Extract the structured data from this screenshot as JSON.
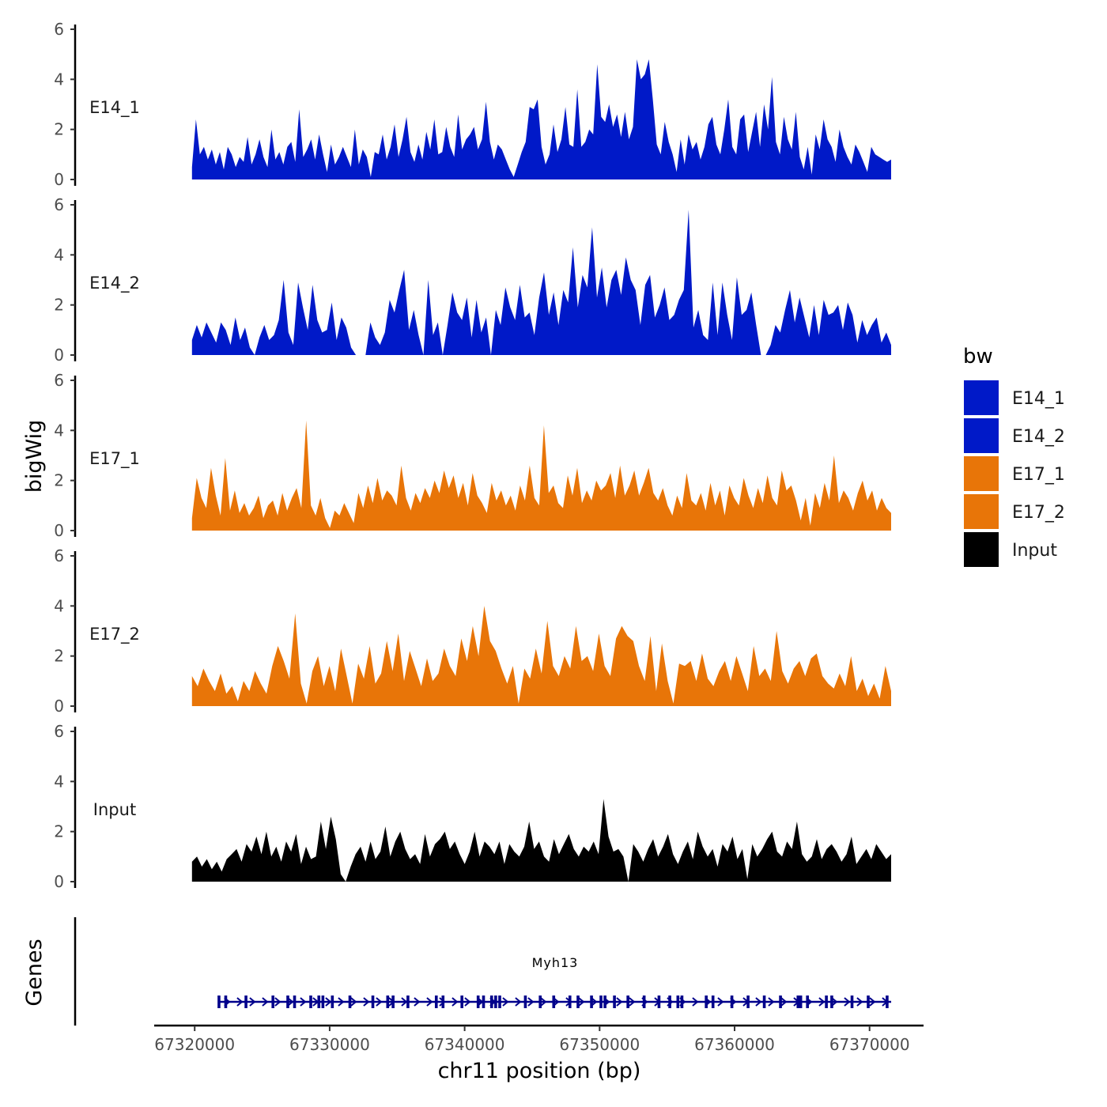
{
  "chart_data": {
    "type": "area",
    "region": "chr11",
    "xlabel": "chr11 position (bp)",
    "ylabel": "bigWig",
    "genes_label": "Genes",
    "xlim": [
      67317000,
      67374000
    ],
    "x_ticks": [
      67320000,
      67330000,
      67340000,
      67350000,
      67360000,
      67370000
    ],
    "x_tick_labels": [
      "67320000",
      "67330000",
      "67340000",
      "67350000",
      "67360000",
      "67370000"
    ],
    "ylim": [
      0,
      6
    ],
    "y_ticks": [
      0,
      2,
      4,
      6
    ],
    "y_tick_labels": [
      "0",
      "2",
      "4",
      "6"
    ],
    "data_range": [
      67319800,
      67371600
    ],
    "legend": {
      "title": "bw",
      "entries": [
        {
          "label": "E14_1",
          "color": "#0019C8"
        },
        {
          "label": "E14_2",
          "color": "#0019C8"
        },
        {
          "label": "E17_1",
          "color": "#E87508"
        },
        {
          "label": "E17_2",
          "color": "#E87508"
        },
        {
          "label": "Input",
          "color": "#000000"
        }
      ]
    },
    "series": [
      {
        "name": "E14_1",
        "color": "#0019C8",
        "values": [
          0.5,
          2.4,
          1.0,
          1.3,
          0.8,
          1.2,
          0.6,
          1.1,
          0.4,
          1.3,
          1.0,
          0.5,
          0.9,
          0.7,
          1.7,
          0.6,
          1.0,
          1.6,
          0.9,
          0.5,
          2.0,
          0.8,
          1.1,
          0.6,
          1.3,
          1.5,
          0.7,
          2.8,
          0.9,
          1.2,
          1.6,
          0.8,
          1.8,
          1.0,
          0.3,
          1.4,
          0.6,
          0.9,
          1.3,
          0.9,
          0.5,
          2.0,
          0.6,
          1.2,
          0.9,
          0.1,
          1.1,
          1.0,
          1.8,
          0.8,
          1.3,
          2.2,
          0.9,
          1.6,
          2.5,
          1.1,
          0.7,
          1.4,
          0.8,
          1.9,
          1.2,
          2.4,
          1.0,
          1.1,
          2.1,
          1.3,
          0.9,
          2.6,
          1.2,
          1.6,
          1.8,
          2.1,
          1.2,
          1.6,
          3.1,
          1.5,
          0.8,
          1.4,
          1.2,
          0.8,
          0.4,
          0.1,
          0.6,
          1.1,
          1.5,
          2.9,
          2.8,
          3.2,
          1.3,
          0.6,
          1.0,
          2.2,
          1.1,
          1.6,
          2.9,
          1.4,
          1.3,
          3.6,
          1.3,
          1.5,
          2.0,
          1.8,
          4.6,
          2.5,
          2.3,
          3.0,
          2.1,
          2.6,
          1.7,
          2.7,
          1.6,
          2.1,
          4.8,
          4.0,
          4.2,
          4.8,
          3.2,
          1.4,
          1.0,
          2.3,
          1.5,
          1.0,
          0.3,
          1.6,
          0.6,
          1.8,
          1.2,
          1.5,
          0.8,
          1.3,
          2.2,
          2.5,
          1.4,
          1.0,
          2.0,
          3.2,
          1.3,
          1.0,
          2.4,
          2.6,
          1.1,
          1.9,
          2.7,
          1.3,
          3.0,
          2.0,
          4.1,
          1.5,
          1.0,
          2.5,
          1.6,
          1.2,
          2.7,
          0.9,
          0.4,
          1.3,
          0.2,
          1.8,
          1.2,
          2.4,
          1.6,
          1.3,
          0.7,
          2.0,
          1.3,
          0.9,
          0.6,
          1.4,
          1.1,
          0.7,
          0.3,
          1.3,
          1.0,
          0.9,
          0.8,
          0.7,
          0.8
        ]
      },
      {
        "name": "E14_2",
        "color": "#0019C8",
        "values": [
          0.6,
          1.2,
          0.7,
          1.3,
          0.9,
          0.5,
          1.3,
          1.0,
          0.4,
          1.5,
          0.6,
          1.1,
          0.3,
          0.0,
          0.7,
          1.2,
          0.6,
          0.8,
          1.4,
          3.0,
          0.9,
          0.4,
          2.9,
          1.9,
          1.0,
          2.8,
          1.4,
          0.9,
          1.0,
          2.1,
          0.6,
          1.5,
          1.1,
          0.3,
          0.0,
          0.0,
          0.0,
          1.3,
          0.7,
          0.4,
          0.9,
          2.2,
          1.7,
          2.6,
          3.4,
          1.0,
          1.8,
          0.8,
          0.0,
          3.0,
          0.8,
          1.3,
          0.0,
          1.2,
          2.5,
          1.7,
          1.4,
          2.3,
          0.7,
          2.2,
          0.9,
          1.5,
          0.0,
          1.8,
          1.2,
          2.7,
          1.9,
          1.4,
          2.8,
          1.5,
          1.7,
          0.8,
          2.3,
          3.3,
          1.6,
          2.5,
          1.2,
          2.6,
          2.1,
          4.3,
          1.9,
          3.2,
          2.7,
          5.1,
          2.3,
          3.5,
          1.9,
          3.0,
          3.4,
          2.4,
          3.9,
          3.0,
          2.6,
          1.2,
          2.8,
          3.2,
          1.5,
          2.0,
          2.7,
          1.4,
          1.6,
          2.2,
          2.6,
          5.8,
          1.1,
          1.8,
          0.8,
          0.6,
          2.9,
          0.8,
          2.9,
          1.6,
          0.6,
          3.1,
          1.6,
          1.8,
          2.5,
          1.2,
          0.0,
          0.0,
          0.4,
          1.2,
          0.9,
          1.8,
          2.6,
          1.3,
          2.3,
          1.5,
          0.7,
          2.0,
          0.8,
          2.2,
          1.6,
          1.7,
          2.0,
          1.0,
          2.1,
          1.6,
          0.5,
          1.4,
          0.8,
          1.2,
          1.5,
          0.5,
          0.9,
          0.4
        ]
      },
      {
        "name": "E17_1",
        "color": "#E87508",
        "values": [
          0.5,
          2.1,
          1.3,
          0.9,
          2.5,
          1.4,
          0.6,
          2.9,
          0.8,
          1.6,
          0.7,
          1.1,
          0.6,
          0.9,
          1.4,
          0.5,
          1.0,
          1.2,
          0.6,
          1.5,
          0.8,
          1.3,
          1.7,
          0.9,
          4.4,
          1.0,
          0.6,
          1.3,
          0.5,
          0.1,
          0.8,
          0.6,
          1.1,
          0.7,
          0.3,
          1.5,
          0.9,
          1.8,
          1.1,
          2.1,
          1.2,
          1.6,
          1.4,
          1.0,
          2.6,
          1.3,
          0.8,
          1.5,
          1.1,
          1.7,
          1.3,
          2.0,
          1.5,
          2.4,
          1.7,
          2.2,
          1.3,
          1.9,
          1.0,
          2.3,
          1.4,
          1.1,
          0.7,
          1.9,
          1.2,
          1.6,
          1.0,
          1.4,
          0.8,
          1.8,
          1.2,
          2.6,
          1.3,
          1.0,
          4.2,
          1.5,
          1.8,
          1.1,
          0.9,
          2.2,
          1.4,
          2.5,
          1.1,
          1.6,
          1.2,
          2.0,
          1.6,
          1.8,
          2.3,
          1.3,
          2.6,
          1.4,
          1.8,
          2.4,
          1.4,
          1.9,
          2.5,
          1.5,
          1.2,
          1.7,
          1.0,
          0.6,
          1.4,
          0.9,
          2.3,
          1.2,
          1.0,
          1.5,
          0.8,
          1.9,
          1.0,
          1.6,
          0.6,
          1.8,
          1.3,
          1.0,
          2.1,
          1.4,
          0.9,
          1.7,
          1.1,
          2.2,
          1.3,
          1.0,
          2.4,
          1.6,
          1.8,
          1.2,
          0.4,
          1.3,
          0.2,
          1.5,
          0.9,
          1.9,
          1.2,
          3.0,
          1.1,
          1.6,
          1.3,
          0.8,
          1.5,
          2.0,
          1.2,
          1.6,
          0.8,
          1.3,
          0.9,
          0.7
        ]
      },
      {
        "name": "E17_2",
        "color": "#E87508",
        "values": [
          1.2,
          0.8,
          1.5,
          1.0,
          0.6,
          1.3,
          0.5,
          0.8,
          0.2,
          1.0,
          0.6,
          1.4,
          0.9,
          0.5,
          1.6,
          2.4,
          1.8,
          1.1,
          3.7,
          0.9,
          0.1,
          1.4,
          2.0,
          0.8,
          1.6,
          0.6,
          2.3,
          1.2,
          0.1,
          1.7,
          1.1,
          2.4,
          0.9,
          1.3,
          2.6,
          1.4,
          2.9,
          1.0,
          2.2,
          1.5,
          0.8,
          1.9,
          1.0,
          1.3,
          2.3,
          1.6,
          1.2,
          2.7,
          1.8,
          3.2,
          2.0,
          4.0,
          2.6,
          2.2,
          1.5,
          0.9,
          1.6,
          0.1,
          1.5,
          1.1,
          2.3,
          1.3,
          3.4,
          1.6,
          1.2,
          2.0,
          1.5,
          3.2,
          1.8,
          2.0,
          1.4,
          2.9,
          1.6,
          1.2,
          2.7,
          3.2,
          2.8,
          2.6,
          1.6,
          1.0,
          2.8,
          0.6,
          2.5,
          1.0,
          0.1,
          1.7,
          1.6,
          1.8,
          1.0,
          2.1,
          1.1,
          0.8,
          1.4,
          1.8,
          1.0,
          2.0,
          1.3,
          0.6,
          2.4,
          1.2,
          1.5,
          1.0,
          3.0,
          1.4,
          0.9,
          1.5,
          1.8,
          1.2,
          1.9,
          2.1,
          1.2,
          0.9,
          0.7,
          1.3,
          0.8,
          2.0,
          0.6,
          1.1,
          0.4,
          0.9,
          0.3,
          1.6,
          0.6
        ]
      },
      {
        "name": "Input",
        "color": "#000000",
        "values": [
          0.8,
          1.0,
          0.6,
          0.9,
          0.5,
          0.8,
          0.4,
          0.9,
          1.1,
          1.3,
          0.8,
          1.5,
          1.2,
          1.8,
          1.1,
          2.0,
          1.0,
          1.4,
          0.8,
          1.6,
          1.2,
          1.9,
          0.7,
          1.4,
          0.9,
          1.0,
          2.4,
          1.3,
          2.6,
          1.7,
          0.3,
          0.0,
          0.6,
          1.1,
          1.4,
          0.8,
          1.6,
          0.9,
          1.2,
          2.2,
          1.0,
          1.6,
          2.0,
          1.3,
          0.9,
          1.1,
          0.7,
          1.9,
          1.0,
          1.5,
          1.7,
          2.0,
          1.3,
          1.6,
          1.1,
          0.7,
          1.2,
          2.0,
          1.0,
          1.6,
          1.4,
          1.1,
          1.6,
          0.7,
          1.5,
          1.2,
          1.0,
          1.4,
          2.4,
          1.3,
          1.6,
          1.0,
          0.8,
          1.7,
          1.1,
          1.5,
          1.9,
          1.3,
          1.0,
          1.4,
          1.2,
          1.6,
          1.1,
          3.3,
          1.8,
          1.2,
          1.3,
          1.0,
          0.0,
          1.5,
          1.2,
          0.8,
          1.3,
          1.7,
          1.0,
          1.4,
          1.9,
          1.1,
          0.7,
          1.2,
          1.6,
          0.9,
          2.0,
          1.4,
          1.0,
          1.3,
          0.6,
          1.5,
          1.2,
          1.8,
          0.9,
          1.3,
          0.1,
          1.5,
          1.0,
          1.3,
          1.7,
          2.0,
          1.2,
          1.0,
          1.6,
          1.3,
          2.4,
          1.1,
          0.8,
          1.0,
          1.7,
          0.9,
          1.3,
          1.5,
          1.2,
          0.8,
          1.1,
          1.8,
          0.7,
          1.0,
          1.3,
          0.9,
          1.5,
          1.2,
          0.9,
          1.1
        ]
      }
    ],
    "gene": {
      "name": "Myh13",
      "start": 67321800,
      "end": 67371600,
      "strand": "+",
      "exons": [
        67321800,
        67322300,
        67323800,
        67325800,
        67326900,
        67327400,
        67328600,
        67329200,
        67329500,
        67330200,
        67331500,
        67333200,
        67334300,
        67334700,
        67335800,
        67337900,
        67338400,
        67339800,
        67341000,
        67341400,
        67342000,
        67342300,
        67342600,
        67344500,
        67345600,
        67346600,
        67347800,
        67348400,
        67349400,
        67350100,
        67350400,
        67351100,
        67352100,
        67353300,
        67354400,
        67355200,
        67355800,
        67356100,
        67357900,
        67358400,
        67359800,
        67361000,
        67362200,
        67363400,
        67364700,
        67364900,
        67365400,
        67366800,
        67367200,
        67368700,
        67369900,
        67371300
      ]
    }
  }
}
